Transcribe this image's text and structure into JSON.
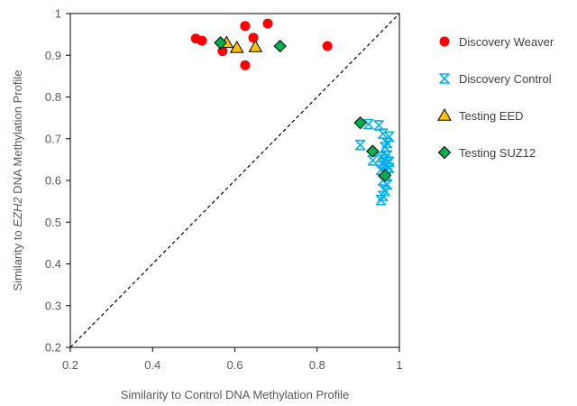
{
  "chart_data": {
    "type": "scatter",
    "xlabel": "Similarity to Control DNA Methylation Profile",
    "ylabel_parts": [
      "Similarity to ",
      "EZH2",
      " DNA Methylation Profile"
    ],
    "xlim": [
      0.2,
      1
    ],
    "ylim": [
      0.2,
      1
    ],
    "x_ticks": [
      0.2,
      0.4,
      0.6,
      0.8,
      1
    ],
    "x_tick_labels": [
      "0.2",
      "0.4",
      "0.6",
      "0.8",
      "1"
    ],
    "y_ticks": [
      0.2,
      0.3,
      0.4,
      0.5,
      0.6,
      0.7,
      0.8,
      0.9,
      1
    ],
    "y_tick_labels": [
      "0.2",
      "0.3",
      "0.4",
      "0.5",
      "0.6",
      "0.7",
      "0.8",
      "0.9",
      "1"
    ],
    "grid": false,
    "reference_line": "y = x (dashed)",
    "legend_position": "right",
    "series": [
      {
        "name": "Discovery Weaver",
        "marker": "circle",
        "color": "#ff0000",
        "points": [
          [
            0.505,
            0.94
          ],
          [
            0.52,
            0.935
          ],
          [
            0.57,
            0.91
          ],
          [
            0.625,
            0.97
          ],
          [
            0.645,
            0.942
          ],
          [
            0.68,
            0.976
          ],
          [
            0.625,
            0.876
          ],
          [
            0.825,
            0.922
          ]
        ]
      },
      {
        "name": "Discovery Control",
        "marker": "asterisk",
        "color": "#00b0f0",
        "points": [
          [
            0.905,
            0.685
          ],
          [
            0.925,
            0.735
          ],
          [
            0.95,
            0.732
          ],
          [
            0.96,
            0.712
          ],
          [
            0.975,
            0.705
          ],
          [
            0.97,
            0.69
          ],
          [
            0.965,
            0.68
          ],
          [
            0.97,
            0.66
          ],
          [
            0.955,
            0.655
          ],
          [
            0.965,
            0.65
          ],
          [
            0.975,
            0.645
          ],
          [
            0.935,
            0.648
          ],
          [
            0.96,
            0.642
          ],
          [
            0.97,
            0.638
          ],
          [
            0.975,
            0.63
          ],
          [
            0.955,
            0.625
          ],
          [
            0.965,
            0.62
          ],
          [
            0.97,
            0.61
          ],
          [
            0.96,
            0.6
          ],
          [
            0.97,
            0.59
          ],
          [
            0.965,
            0.575
          ],
          [
            0.96,
            0.563
          ],
          [
            0.955,
            0.553
          ]
        ]
      },
      {
        "name": "Testing EED",
        "marker": "triangle",
        "color": "#ffc000",
        "points": [
          [
            0.58,
            0.93
          ],
          [
            0.605,
            0.918
          ],
          [
            0.65,
            0.92
          ]
        ]
      },
      {
        "name": "Testing SUZ12",
        "marker": "diamond",
        "color": "#00b050",
        "points": [
          [
            0.565,
            0.93
          ],
          [
            0.71,
            0.922
          ],
          [
            0.905,
            0.738
          ],
          [
            0.935,
            0.67
          ],
          [
            0.965,
            0.612
          ]
        ]
      }
    ]
  }
}
